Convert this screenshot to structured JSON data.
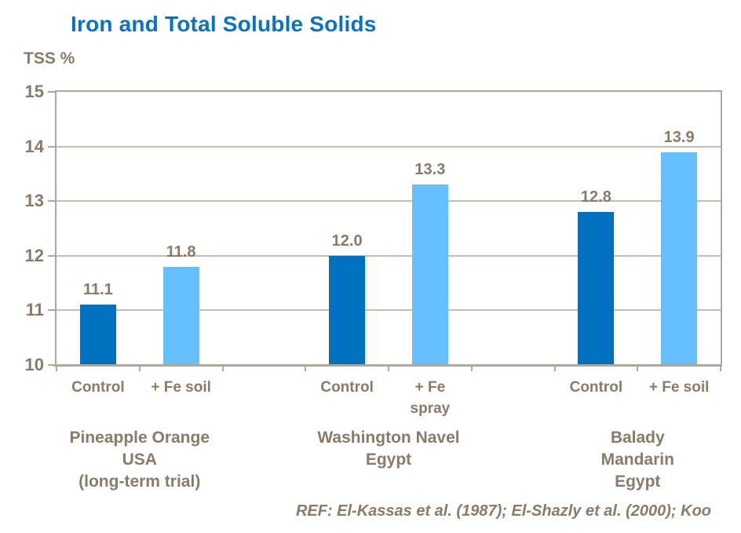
{
  "slide": {
    "title": "Iron and Total Soluble Solids",
    "footer_reference": "REF: El-Kassas et al. (1987); El-Shazly et al. (2000); Koo"
  },
  "chart_data": {
    "type": "bar",
    "title": "Iron and Total Soluble Solids",
    "ylabel": "TSS %",
    "xlabel": "",
    "ylim": [
      10,
      15
    ],
    "yticks": [
      10,
      11,
      12,
      13,
      14,
      15
    ],
    "grid": true,
    "legend": "none",
    "series_colors": {
      "dark": "#0070c0",
      "light": "#66bfff"
    },
    "groups": [
      {
        "label": "Pineapple Orange\nUSA\n(long-term trial)",
        "bars": [
          {
            "category": "Control",
            "value": 11.1,
            "display": "11.1",
            "shade": "dark"
          },
          {
            "category": "+ Fe soil",
            "value": 11.8,
            "display": "11.8",
            "shade": "light"
          }
        ]
      },
      {
        "label": "Washington Navel\nEgypt",
        "bars": [
          {
            "category": "Control",
            "value": 12.0,
            "display": "12.0",
            "shade": "dark"
          },
          {
            "category": "+ Fe\nspray",
            "value": 13.3,
            "display": "13.3",
            "shade": "light"
          }
        ]
      },
      {
        "label": "Balady Mandarin\nEgypt",
        "bars": [
          {
            "category": "Control",
            "value": 12.8,
            "display": "12.8",
            "shade": "dark"
          },
          {
            "category": "+ Fe soil",
            "value": 13.9,
            "display": "13.9",
            "shade": "light"
          }
        ]
      }
    ]
  },
  "colors": {
    "title_blue": "#0a72c6",
    "bar_dark_blue": "#0070c0",
    "bar_light_blue": "#66bfff",
    "chart_text_brown": "#8a7a67",
    "axis_gray": "#aea79b",
    "gridline_gray": "#c3bdb3"
  }
}
